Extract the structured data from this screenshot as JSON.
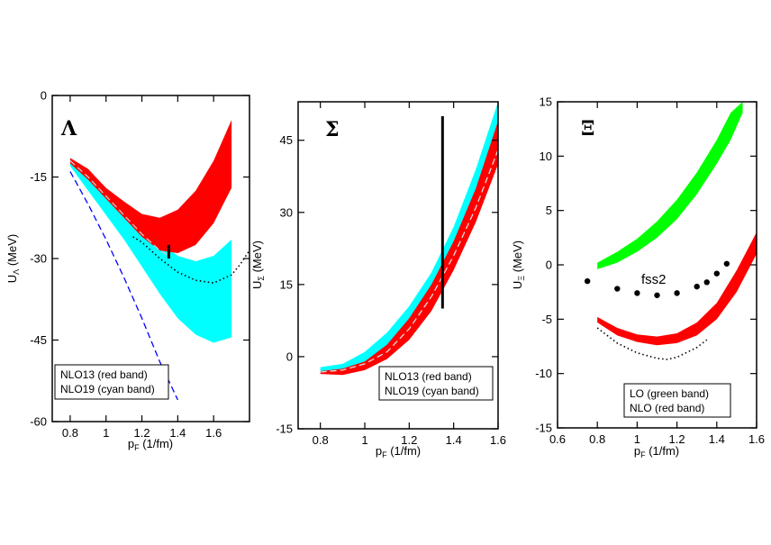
{
  "chart_data": [
    {
      "type": "line",
      "panel": "Lambda",
      "symbol": "Λ",
      "title": "",
      "xlabel": "p_F (1/fm)",
      "ylabel": "U_Λ (MeV)",
      "xlim": [
        0.7,
        1.8
      ],
      "ylim": [
        -60,
        0
      ],
      "xticks": [
        0.8,
        1.0,
        1.2,
        1.4,
        1.6
      ],
      "xtick_labels": [
        "0.8",
        "1",
        "1.2",
        "1.4",
        "1.6"
      ],
      "yticks": [
        -60,
        -45,
        -30,
        -15,
        0
      ],
      "ytick_labels": [
        "-60",
        "-45",
        "-30",
        "-15",
        "0"
      ],
      "grid": false,
      "legend": {
        "placement": "bottom-left",
        "entries": [
          "NLO13 (red band)",
          "NLO19 (cyan band)"
        ]
      },
      "bands": [
        {
          "name": "NLO19 (cyan band)",
          "color": "#00ffff",
          "x": [
            0.8,
            0.9,
            1.0,
            1.1,
            1.2,
            1.3,
            1.4,
            1.5,
            1.6,
            1.7
          ],
          "upper": [
            -11.5,
            -14.5,
            -17.5,
            -20.5,
            -24,
            -27,
            -29.5,
            -30.5,
            -29.5,
            -26.5
          ],
          "lower": [
            -13,
            -17.5,
            -22,
            -26.5,
            -31.5,
            -36.5,
            -41,
            -44,
            -45.5,
            -44.5
          ]
        },
        {
          "name": "NLO13 (red band)",
          "color": "#ff0000",
          "x": [
            0.8,
            0.9,
            1.0,
            1.1,
            1.2,
            1.3,
            1.4,
            1.5,
            1.6,
            1.7
          ],
          "upper": [
            -11.5,
            -13.5,
            -17,
            -19.5,
            -21.8,
            -22.5,
            -21,
            -17.5,
            -12,
            -4.5
          ],
          "lower": [
            -12.5,
            -15.5,
            -19,
            -22.5,
            -26,
            -28.5,
            -29,
            -27.5,
            -23.5,
            -17
          ]
        }
      ],
      "series": [
        {
          "name": "dashed gray",
          "color": "#cccccc",
          "style": "dashed",
          "x": [
            0.8,
            0.9,
            1.0,
            1.1,
            1.2,
            1.3,
            1.35
          ],
          "y": [
            -12,
            -15,
            -18.5,
            -22,
            -25.5,
            -28.5,
            -29.5
          ]
        },
        {
          "name": "dotted black",
          "color": "#000000",
          "style": "dotted",
          "x": [
            1.15,
            1.2,
            1.3,
            1.4,
            1.5,
            1.6,
            1.7,
            1.75,
            1.8
          ],
          "y": [
            -26,
            -27,
            -30,
            -32.5,
            -34,
            -34.5,
            -33,
            -31,
            -28.5
          ]
        },
        {
          "name": "dashed blue",
          "color": "#0000ff",
          "style": "dashed",
          "x": [
            0.8,
            0.9,
            1.0,
            1.1,
            1.2,
            1.3,
            1.4
          ],
          "y": [
            -14,
            -20,
            -26.5,
            -33.5,
            -41,
            -49,
            -56
          ]
        }
      ],
      "vbar": {
        "x": 1.35,
        "y1": -27.5,
        "y2": -30
      }
    },
    {
      "type": "line",
      "panel": "Sigma",
      "symbol": "Σ",
      "title": "",
      "xlabel": "p_F (1/fm)",
      "ylabel": "U_Σ (MeV)",
      "xlim": [
        0.7,
        1.6
      ],
      "ylim": [
        -15,
        53
      ],
      "xticks": [
        0.8,
        1.0,
        1.2,
        1.4,
        1.6
      ],
      "xtick_labels": [
        "0.8",
        "1",
        "1.2",
        "1.4",
        "1.6"
      ],
      "yticks": [
        -15,
        0,
        15,
        30,
        45
      ],
      "ytick_labels": [
        "-15",
        "0",
        "15",
        "30",
        "45"
      ],
      "grid": false,
      "legend": {
        "placement": "bottom-right",
        "entries": [
          "NLO13 (red band)",
          "NLO19 (cyan band)"
        ]
      },
      "bands": [
        {
          "name": "NLO19 (cyan band)",
          "color": "#00ffff",
          "x": [
            0.8,
            0.9,
            1.0,
            1.1,
            1.2,
            1.3,
            1.4,
            1.5,
            1.6
          ],
          "upper": [
            -2.2,
            -1.5,
            1,
            5,
            10.5,
            17.5,
            27,
            39,
            53
          ],
          "lower": [
            -3,
            -3,
            -1.8,
            0.5,
            4.5,
            11,
            20,
            31,
            43
          ]
        },
        {
          "name": "NLO13 (red band)",
          "color": "#ff0000",
          "x": [
            0.8,
            0.9,
            1.0,
            1.1,
            1.2,
            1.3,
            1.4,
            1.5,
            1.6
          ],
          "upper": [
            -3,
            -2.5,
            -1,
            2.5,
            8,
            15,
            24,
            35,
            49
          ],
          "lower": [
            -3.6,
            -3.8,
            -2.8,
            -0.5,
            3.5,
            9.5,
            18,
            28,
            40
          ]
        }
      ],
      "series": [
        {
          "name": "dashed light",
          "color": "#dddddd",
          "style": "dashed",
          "x": [
            0.8,
            0.9,
            1.0,
            1.1,
            1.2,
            1.3,
            1.4,
            1.5,
            1.6
          ],
          "y": [
            -3.2,
            -2.8,
            -1.5,
            1,
            5.8,
            12.5,
            21,
            31,
            43
          ]
        }
      ],
      "vbar": {
        "x": 1.35,
        "y1": 50,
        "y2": 10
      }
    },
    {
      "type": "line",
      "panel": "Xi",
      "symbol": "Ξ",
      "title": "",
      "xlabel": "p_F (1/fm)",
      "ylabel": "U_Ξ (MeV)",
      "xlim": [
        0.6,
        1.6
      ],
      "ylim": [
        -15,
        15
      ],
      "xticks": [
        0.6,
        0.8,
        1.0,
        1.2,
        1.4,
        1.6
      ],
      "xtick_labels": [
        "0.6",
        "0.8",
        "1",
        "1.2",
        "1.4",
        "1.6"
      ],
      "yticks": [
        -15,
        -10,
        -5,
        0,
        5,
        10,
        15
      ],
      "ytick_labels": [
        "-15",
        "-10",
        "-5",
        "0",
        "5",
        "10",
        "15"
      ],
      "grid": false,
      "legend": {
        "placement": "bottom-right",
        "entries": [
          "LO (green band)",
          "NLO (red band)"
        ]
      },
      "annotation": "fss2",
      "bands": [
        {
          "name": "LO (green band)",
          "color": "#00ff00",
          "x": [
            0.8,
            0.9,
            1.0,
            1.1,
            1.2,
            1.3,
            1.4,
            1.47,
            1.53
          ],
          "upper": [
            0.2,
            1.2,
            2.4,
            4.0,
            6.0,
            8.5,
            11.5,
            14.0,
            15.0
          ],
          "lower": [
            -0.4,
            0.2,
            1.2,
            2.5,
            4.2,
            6.5,
            9.3,
            11.5,
            14.0
          ]
        },
        {
          "name": "NLO (red band)",
          "color": "#ff0000",
          "x": [
            0.8,
            0.9,
            1.0,
            1.1,
            1.2,
            1.3,
            1.4,
            1.5,
            1.6
          ],
          "upper": [
            -4.8,
            -5.8,
            -6.4,
            -6.6,
            -6.3,
            -5.3,
            -3.5,
            -0.5,
            3.0
          ],
          "lower": [
            -5.3,
            -6.5,
            -7.1,
            -7.4,
            -7.2,
            -6.5,
            -5.0,
            -2.5,
            1.0
          ]
        }
      ],
      "series": [
        {
          "name": "dotted black",
          "color": "#000000",
          "style": "dotted",
          "x": [
            0.8,
            0.9,
            1.0,
            1.1,
            1.15,
            1.2,
            1.3,
            1.35
          ],
          "y": [
            -5.8,
            -7.2,
            -8.1,
            -8.6,
            -8.7,
            -8.5,
            -7.6,
            -6.9
          ]
        },
        {
          "name": "fss2",
          "color": "#000000",
          "style": "markers",
          "x": [
            0.75,
            0.9,
            1.0,
            1.1,
            1.2,
            1.3,
            1.35,
            1.4,
            1.45
          ],
          "y": [
            -1.5,
            -2.2,
            -2.6,
            -2.8,
            -2.6,
            -2.0,
            -1.6,
            -0.8,
            0.1
          ]
        }
      ]
    }
  ]
}
